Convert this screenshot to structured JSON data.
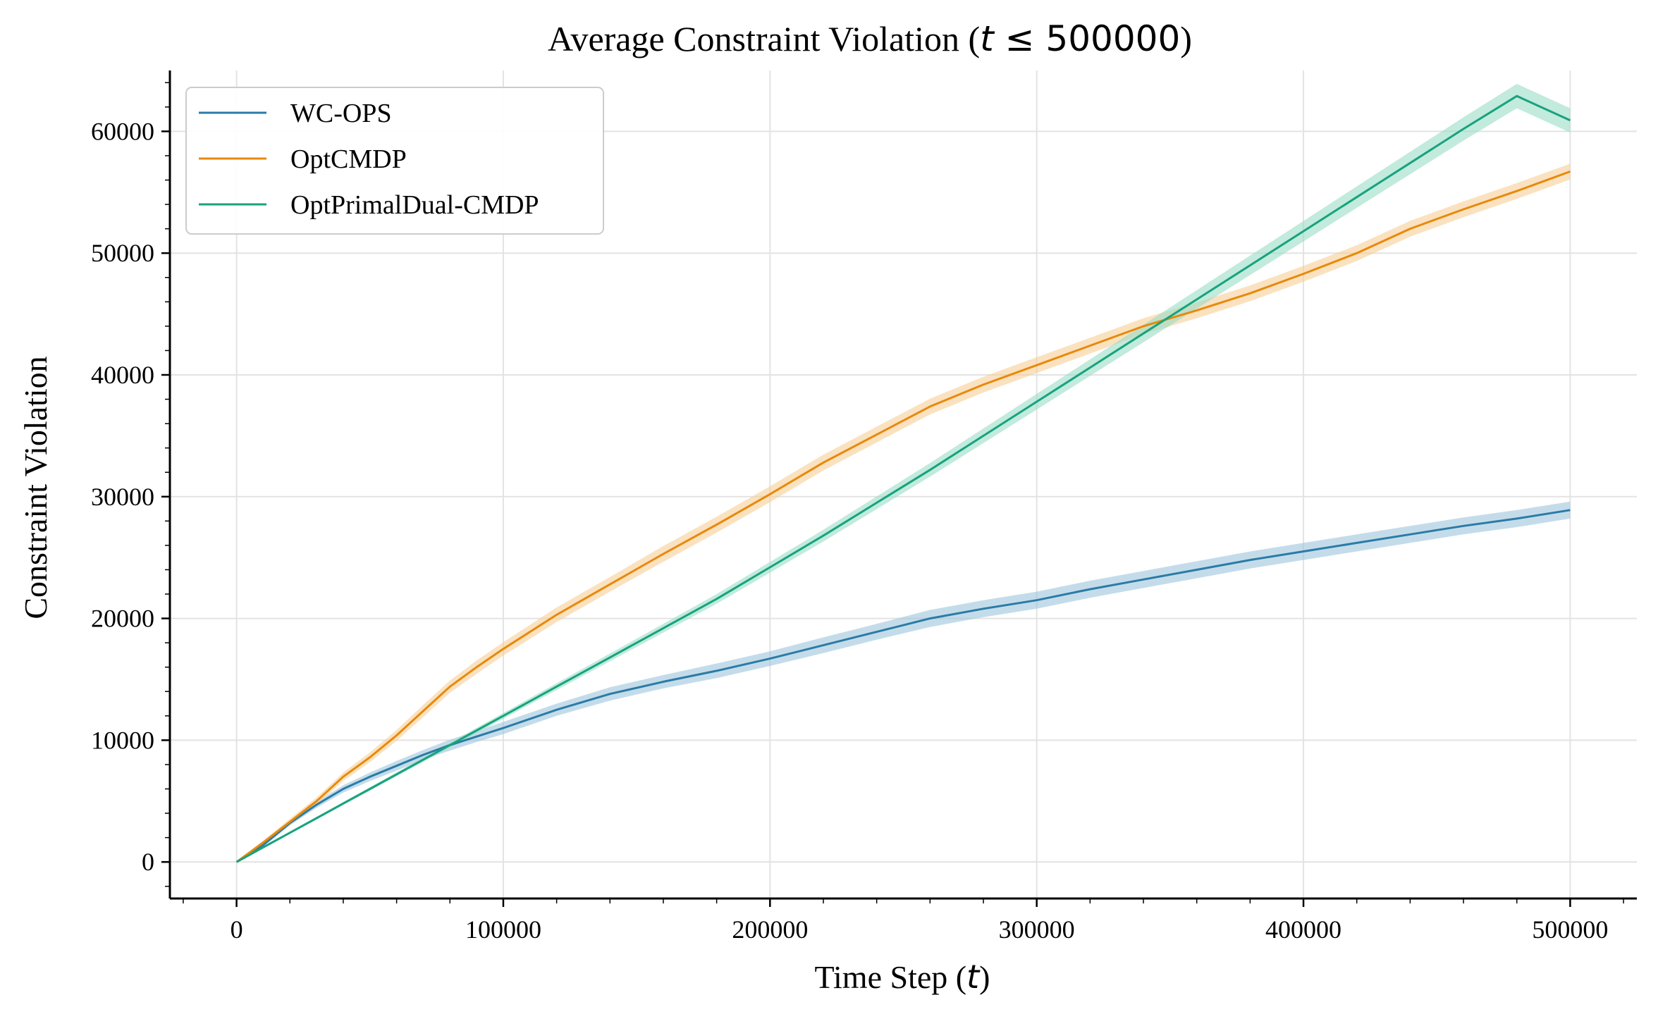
{
  "chart_data": {
    "type": "line",
    "title": {
      "prefix": "Average Constraint Violation (",
      "math_var": "t",
      "math_rest": " ≤ 500000",
      "suffix": ")"
    },
    "xlabel": {
      "prefix": "Time Step (",
      "math_var": "t",
      "suffix": ")"
    },
    "ylabel": "Constraint Violation",
    "xlim": [
      -25000,
      525000
    ],
    "ylim": [
      -3000,
      65000
    ],
    "xticks": [
      0,
      100000,
      200000,
      300000,
      400000,
      500000
    ],
    "xtick_labels": [
      "0",
      "100000",
      "200000",
      "300000",
      "400000",
      "500000"
    ],
    "yticks": [
      0,
      10000,
      20000,
      30000,
      40000,
      50000,
      60000
    ],
    "ytick_labels": [
      "0",
      "10000",
      "20000",
      "30000",
      "40000",
      "50000",
      "60000"
    ],
    "grid": true,
    "legend_position": "top-left",
    "x": [
      0,
      10000,
      20000,
      30000,
      40000,
      50000,
      60000,
      70000,
      80000,
      90000,
      100000,
      120000,
      140000,
      160000,
      180000,
      200000,
      220000,
      240000,
      260000,
      280000,
      300000,
      320000,
      340000,
      360000,
      380000,
      400000,
      420000,
      440000,
      460000,
      480000,
      500000
    ],
    "series": [
      {
        "name": "WC-OPS",
        "color": "#2b7ba6",
        "band_color": "#9cc5dc",
        "values": [
          0,
          1400,
          3200,
          4700,
          6000,
          7000,
          7900,
          8800,
          9600,
          10300,
          11000,
          12500,
          13800,
          14800,
          15700,
          16700,
          17800,
          18900,
          20000,
          20800,
          21500,
          22400,
          23200,
          24000,
          24800,
          25500,
          26200,
          26900,
          27600,
          28200,
          28900
        ],
        "band_halfwidth": [
          0,
          150,
          200,
          250,
          300,
          350,
          400,
          400,
          450,
          450,
          500,
          500,
          550,
          550,
          600,
          600,
          650,
          650,
          700,
          700,
          700,
          700,
          700,
          700,
          700,
          700,
          700,
          700,
          700,
          700,
          700
        ]
      },
      {
        "name": "OptCMDP",
        "color": "#e8890c",
        "band_color": "#f7cf96",
        "values": [
          0,
          1600,
          3300,
          5000,
          7000,
          8600,
          10400,
          12400,
          14400,
          16000,
          17500,
          20300,
          22800,
          25300,
          27700,
          30200,
          32800,
          35100,
          37400,
          39200,
          40800,
          42400,
          44000,
          45300,
          46700,
          48300,
          50000,
          52000,
          53600,
          55100,
          56700
        ],
        "band_halfwidth": [
          0,
          150,
          250,
          300,
          350,
          400,
          450,
          500,
          500,
          550,
          550,
          600,
          600,
          650,
          650,
          650,
          650,
          650,
          650,
          650,
          650,
          650,
          650,
          650,
          650,
          650,
          650,
          650,
          650,
          650,
          650
        ]
      },
      {
        "name": "OptPrimalDual-CMDP",
        "color": "#17a37d",
        "band_color": "#9adcc7",
        "values": [
          0,
          1200,
          2400,
          3600,
          4800,
          6000,
          7200,
          8400,
          9600,
          10800,
          12000,
          14400,
          16800,
          19200,
          21600,
          24200,
          26800,
          29500,
          32200,
          35000,
          37800,
          40600,
          43400,
          46200,
          49000,
          51800,
          54600,
          57400,
          60200,
          62900,
          60900
        ],
        "band_halfwidth": [
          0,
          50,
          80,
          100,
          120,
          140,
          160,
          180,
          200,
          220,
          240,
          280,
          320,
          360,
          400,
          440,
          480,
          520,
          560,
          600,
          640,
          680,
          720,
          760,
          800,
          840,
          880,
          920,
          960,
          1000,
          1000
        ]
      }
    ]
  }
}
